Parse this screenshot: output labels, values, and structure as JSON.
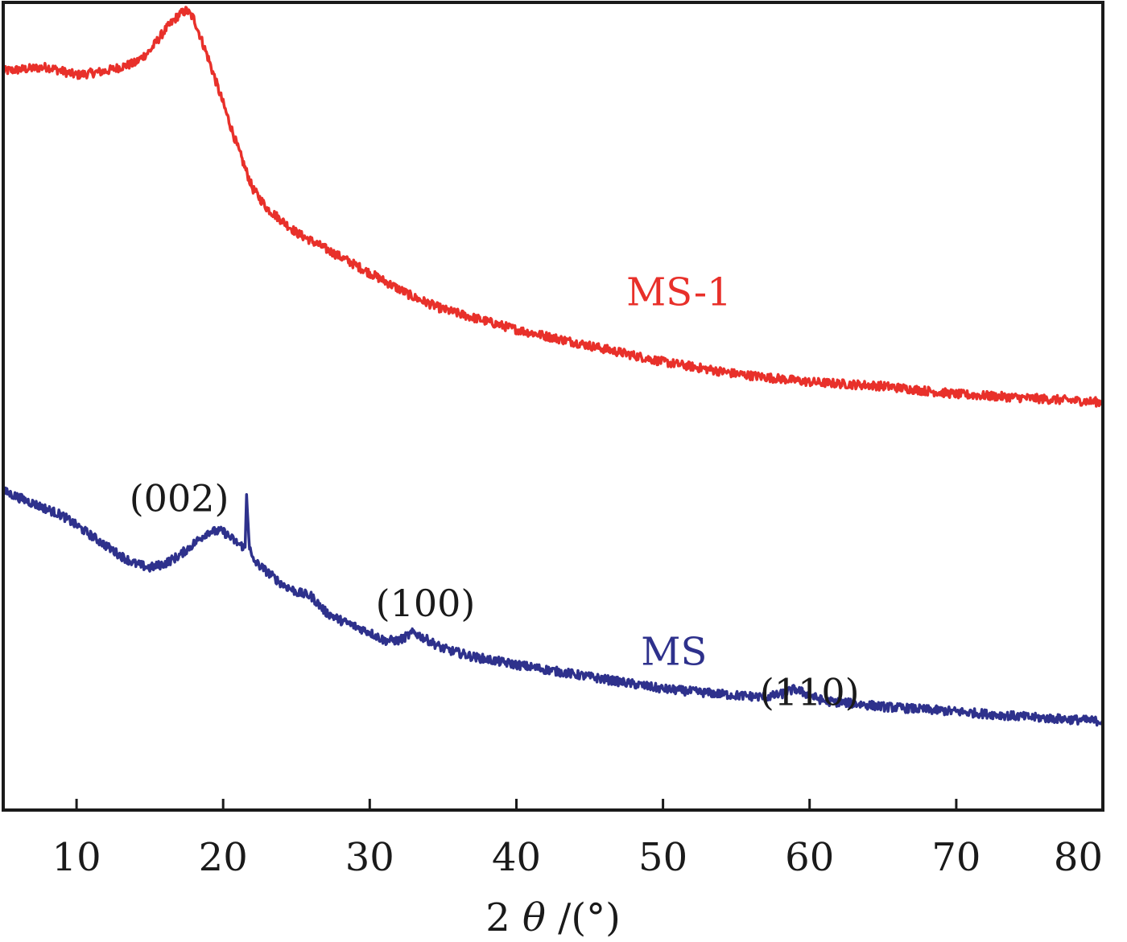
{
  "chart_data": {
    "type": "line",
    "title": "",
    "xlabel_prefix": "2 ",
    "xlabel_symbol": "θ",
    "xlabel_suffix": " /(°)",
    "ylabel": "",
    "xlim": [
      5,
      80
    ],
    "ylim": [
      0,
      100
    ],
    "xticks": [
      10,
      20,
      30,
      40,
      50,
      60,
      70,
      80
    ],
    "xtick_labels": [
      "10",
      "20",
      "30",
      "40",
      "50",
      "60",
      "70",
      "80"
    ],
    "grid": false,
    "series": [
      {
        "name": "MS-1",
        "color": "#e8302a",
        "x": [
          5,
          8,
          10,
          12,
          14,
          15,
          16,
          17,
          17.5,
          18,
          19,
          20,
          21,
          22,
          23,
          24,
          25,
          27,
          30,
          33,
          35,
          40,
          45,
          50,
          55,
          60,
          65,
          70,
          75,
          80
        ],
        "y": [
          91.5,
          92,
          91,
          91.5,
          92.5,
          94,
          96.5,
          98.5,
          99,
          98,
          93,
          87.5,
          82,
          77,
          74.5,
          73,
          71.5,
          69.5,
          66.5,
          63.5,
          62,
          59.5,
          57.5,
          55.5,
          54,
          53,
          52.5,
          51.5,
          51,
          50.5
        ]
      },
      {
        "name": "MS",
        "color": "#2e318c",
        "x": [
          5,
          7,
          9,
          11,
          13,
          14,
          15,
          16,
          17,
          18,
          19,
          20,
          21,
          21.5,
          21.6,
          21.8,
          22,
          23,
          24,
          25,
          26,
          27,
          28,
          30,
          31,
          32,
          33,
          34,
          35,
          37,
          40,
          45,
          50,
          55,
          57,
          58,
          59,
          60,
          61,
          63,
          65,
          70,
          75,
          80
        ],
        "y": [
          39.5,
          38,
          36.5,
          34,
          31.5,
          30.5,
          30,
          30.5,
          31.5,
          33,
          34.5,
          34.5,
          33,
          32.5,
          39,
          32.5,
          31,
          29.5,
          28,
          27,
          26.5,
          24.5,
          23.5,
          22,
          21,
          21,
          22,
          21,
          20,
          19,
          18,
          16.5,
          15,
          14.2,
          14,
          14.3,
          15,
          14.2,
          13.5,
          13.2,
          12.8,
          12.2,
          11.5,
          11
        ]
      }
    ],
    "series_labels": [
      {
        "text": "MS-1",
        "color": "#e8302a",
        "x": 47.5,
        "y": 62.5
      },
      {
        "text": "MS",
        "color": "#2e318c",
        "x": 48.5,
        "y": 18
      }
    ],
    "annotations": [
      {
        "text": "(002)",
        "x": 17,
        "y": 37
      },
      {
        "text": "(100)",
        "x": 33.8,
        "y": 24
      },
      {
        "text": "(110)",
        "x": 60,
        "y": 13
      }
    ]
  }
}
